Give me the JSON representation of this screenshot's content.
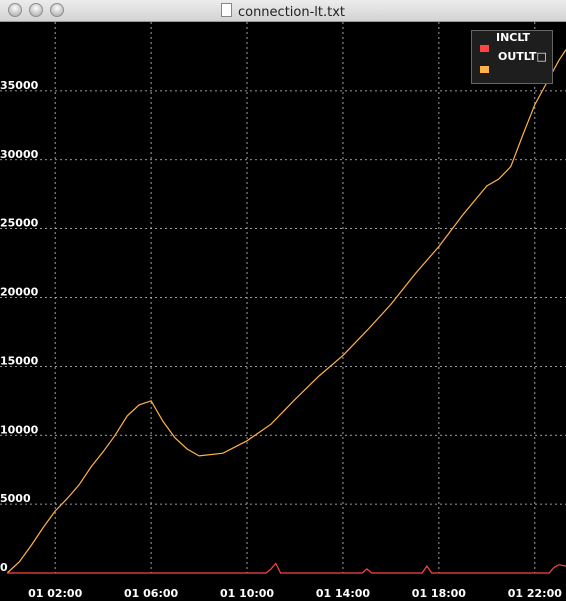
{
  "window": {
    "title": "connection-lt.txt"
  },
  "colors": {
    "background": "#000000",
    "grid": "#cccccc",
    "inclt": "#ff4444",
    "outlt": "#ffb347"
  },
  "chart_data": {
    "type": "line",
    "legend_position": "top-right",
    "legend_title": "INCLT",
    "legend_label": "OUTLT□",
    "grid": true,
    "x_ticks": [
      "01 02:00",
      "01 06:00",
      "01 10:00",
      "01 14:00",
      "01 18:00",
      "01 22:00"
    ],
    "x_tick_hours": [
      2,
      6,
      10,
      14,
      18,
      22
    ],
    "xlim_hours": [
      -0.3,
      23.3
    ],
    "y_ticks": [
      "0",
      "5000",
      "10000",
      "15000",
      "20000",
      "25000",
      "30000",
      "35000"
    ],
    "ylim": [
      0,
      40000
    ],
    "series": [
      {
        "key": "outlt",
        "hours": [
          0,
          0.5,
          1,
          1.5,
          2,
          2.5,
          3,
          3.5,
          4,
          4.5,
          5,
          5.5,
          6,
          6.5,
          7,
          7.5,
          8,
          9,
          10,
          11,
          12,
          13,
          14,
          15,
          16,
          17,
          18,
          19,
          20,
          20.5,
          21,
          21.5,
          22,
          22.5,
          23,
          23.3
        ],
        "values": [
          0,
          800,
          2000,
          3300,
          4500,
          5400,
          6400,
          7700,
          8800,
          10000,
          11400,
          12200,
          12500,
          11000,
          9800,
          9000,
          8500,
          8700,
          9600,
          10800,
          12600,
          14300,
          15800,
          17600,
          19500,
          21700,
          23700,
          26000,
          28100,
          28600,
          29500,
          31800,
          34000,
          35600,
          37200,
          38000
        ]
      },
      {
        "key": "inclt",
        "hours": [
          0,
          10.8,
          11.0,
          11.2,
          11.4,
          14.8,
          15.0,
          15.2,
          17.3,
          17.5,
          17.7,
          22.6,
          22.8,
          23.0,
          23.3
        ],
        "values": [
          0,
          0,
          300,
          700,
          0,
          0,
          300,
          0,
          0,
          500,
          0,
          0,
          400,
          600,
          500
        ]
      }
    ]
  }
}
